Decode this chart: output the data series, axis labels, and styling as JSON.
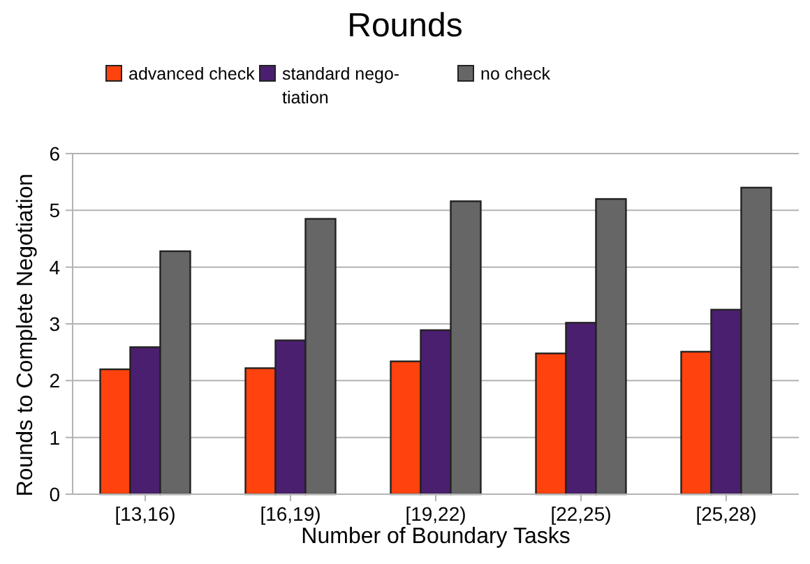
{
  "chart_data": {
    "type": "bar",
    "title": "Rounds",
    "xlabel": "Number of Boundary Tasks",
    "ylabel": "Rounds to Complete Negotiation",
    "categories": [
      "[13,16)",
      "[16,19)",
      "[19,22)",
      "[22,25)",
      "[25,28)"
    ],
    "series": [
      {
        "name": "advanced check",
        "color": "#ff420e",
        "values": [
          2.2,
          2.22,
          2.34,
          2.48,
          2.51
        ]
      },
      {
        "name": "standard nego-tiation",
        "color": "#4b1f6f",
        "values": [
          2.59,
          2.71,
          2.89,
          3.02,
          3.25
        ]
      },
      {
        "name": "no check",
        "color": "#666666",
        "values": [
          4.28,
          4.85,
          5.16,
          5.2,
          5.4
        ]
      }
    ],
    "ylim": [
      0,
      6
    ],
    "yticks": [
      0,
      1,
      2,
      3,
      4,
      5,
      6
    ],
    "grid": "y",
    "legend": "top"
  }
}
